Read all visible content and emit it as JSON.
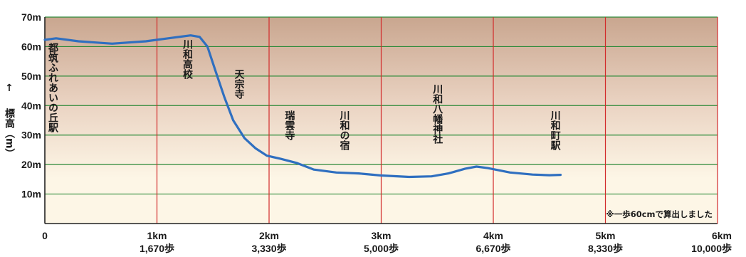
{
  "chart_data": {
    "type": "line",
    "title": "",
    "ylabel": "標高（m）",
    "yarrow": "↑",
    "ylim": [
      0,
      70
    ],
    "xlim": [
      0,
      6
    ],
    "grid": true,
    "legend": "none",
    "y_ticks": [
      {
        "value": 10,
        "label": "10m"
      },
      {
        "value": 20,
        "label": "20m"
      },
      {
        "value": 30,
        "label": "30m"
      },
      {
        "value": 40,
        "label": "40m"
      },
      {
        "value": 50,
        "label": "50m"
      },
      {
        "value": 60,
        "label": "60m"
      },
      {
        "value": 70,
        "label": "70m"
      }
    ],
    "x_ticks": [
      {
        "value": 0,
        "km": "0",
        "steps": ""
      },
      {
        "value": 1,
        "km": "1km",
        "steps": "1,670歩"
      },
      {
        "value": 2,
        "km": "2km",
        "steps": "3,330歩"
      },
      {
        "value": 3,
        "km": "3km",
        "steps": "5,000歩"
      },
      {
        "value": 4,
        "km": "4km",
        "steps": "6,670歩"
      },
      {
        "value": 5,
        "km": "5km",
        "steps": "8,330歩"
      },
      {
        "value": 6,
        "km": "6km",
        "steps": "10,000歩"
      }
    ],
    "series": [
      {
        "color": "#2f6fc0",
        "points": [
          [
            0.0,
            62.3
          ],
          [
            0.1,
            62.8
          ],
          [
            0.3,
            61.8
          ],
          [
            0.6,
            61.0
          ],
          [
            0.9,
            61.8
          ],
          [
            1.1,
            62.8
          ],
          [
            1.3,
            63.8
          ],
          [
            1.38,
            63.3
          ],
          [
            1.45,
            60.0
          ],
          [
            1.52,
            52.0
          ],
          [
            1.6,
            43.0
          ],
          [
            1.68,
            35.0
          ],
          [
            1.78,
            29.0
          ],
          [
            1.88,
            25.5
          ],
          [
            1.98,
            23.0
          ],
          [
            2.1,
            22.0
          ],
          [
            2.25,
            20.5
          ],
          [
            2.4,
            18.3
          ],
          [
            2.6,
            17.3
          ],
          [
            2.8,
            17.0
          ],
          [
            3.0,
            16.3
          ],
          [
            3.25,
            15.8
          ],
          [
            3.45,
            16.0
          ],
          [
            3.6,
            17.0
          ],
          [
            3.75,
            18.6
          ],
          [
            3.85,
            19.3
          ],
          [
            3.95,
            18.8
          ],
          [
            4.15,
            17.3
          ],
          [
            4.35,
            16.6
          ],
          [
            4.5,
            16.4
          ],
          [
            4.6,
            16.5
          ]
        ]
      }
    ],
    "annotations": [
      {
        "x": 0.07,
        "label": "都筑ふれあいの丘駅"
      },
      {
        "x": 1.27,
        "label": "川和高校"
      },
      {
        "x": 1.73,
        "label": "天宗寺"
      },
      {
        "x": 2.18,
        "label": "瑞雲寺"
      },
      {
        "x": 2.67,
        "label": "川和の宿"
      },
      {
        "x": 3.5,
        "label": "川和八幡神社"
      },
      {
        "x": 4.55,
        "label": "川和町駅"
      }
    ],
    "note": "※一歩60cmで算出しました",
    "colors": {
      "grid_h": "#2e8b3a",
      "grid_v": "#d22a2a",
      "axis": "#222222",
      "band_top": "#c9a68f",
      "band_mid": "#ead3c2",
      "band_bottom": "#fdf6e6"
    }
  }
}
